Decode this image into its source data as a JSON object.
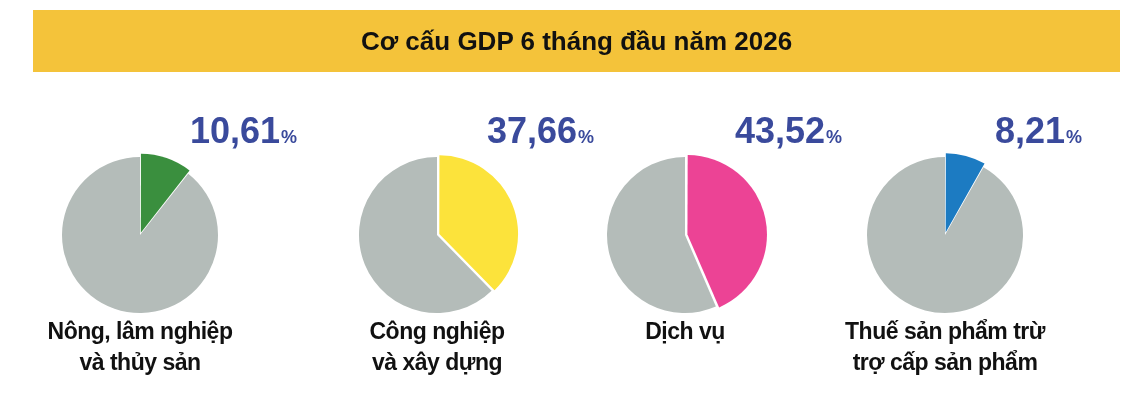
{
  "chart_data": [
    {
      "type": "other",
      "title": "Cơ cấu GDP 6 tháng đầu năm 2026"
    },
    {
      "type": "pie",
      "title": "Nông, lâm nghiệp\nvà thủy sản",
      "categories": [
        null,
        null
      ],
      "values": [
        10.61,
        89.39
      ],
      "colors": [
        "#3a8f3e",
        "#b4bcb9"
      ],
      "value_labels": [
        "10,61%",
        null
      ]
    },
    {
      "type": "pie",
      "title": "Công nghiệp\nvà xây dựng",
      "categories": [
        null,
        null
      ],
      "values": [
        37.66,
        62.34
      ],
      "colors": [
        "#fce33b",
        "#b4bcb9"
      ],
      "value_labels": [
        "37,66%",
        null
      ]
    },
    {
      "type": "pie",
      "title": "Dịch vụ",
      "categories": [
        null,
        null
      ],
      "values": [
        43.52,
        56.48
      ],
      "colors": [
        "#ec4395",
        "#b4bcb9"
      ],
      "value_labels": [
        "43,52%",
        null
      ]
    },
    {
      "type": "pie",
      "title": "Thuế sản phẩm trừ\ntrợ cấp sản phẩm",
      "categories": [
        null,
        null
      ],
      "values": [
        8.21,
        91.79
      ],
      "colors": [
        "#1c7bc2",
        "#b4bcb9"
      ],
      "value_labels": [
        "8,21%",
        null
      ]
    }
  ]
}
